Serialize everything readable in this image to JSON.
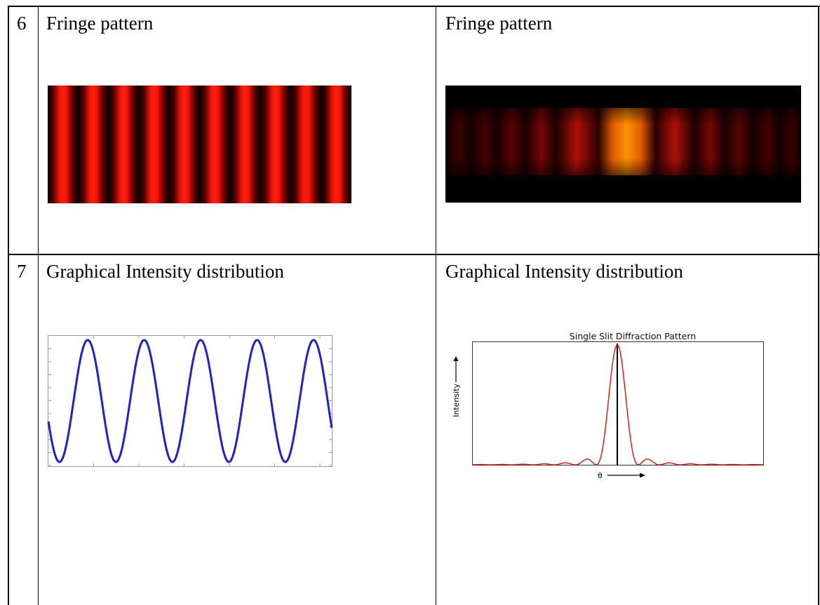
{
  "rows": [
    {
      "number": "6",
      "left_label": "Fringe pattern",
      "right_label": "Fringe pattern"
    },
    {
      "number": "7",
      "left_label": "Graphical Intensity distribution",
      "right_label": "Graphical Intensity distribution"
    }
  ],
  "figures": {
    "double_slit_fringes": {
      "fringe_count": 10,
      "color": "#ff1a0a"
    },
    "single_slit_fringes": {
      "central_color": "#ff8c00",
      "side_color": "#cc1100"
    },
    "cosine_plot": {
      "line_color": "#1f1fd6",
      "periods": 5
    },
    "single_slit_plot": {
      "title": "Single Slit Diffraction Pattern",
      "y_label": "Intensity",
      "x_label": "θ",
      "line_color": "#e01010"
    }
  }
}
